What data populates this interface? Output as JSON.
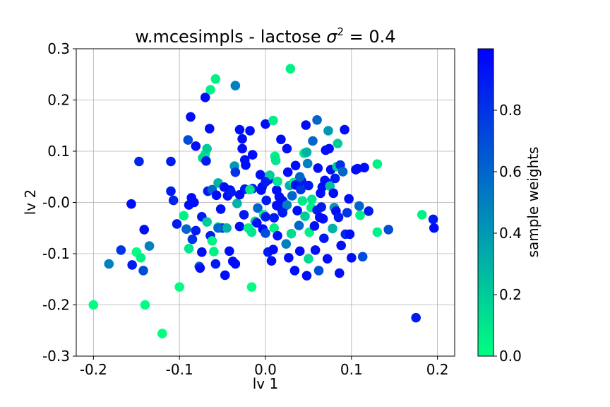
{
  "chart_data": {
    "type": "scatter",
    "title_text": "w.mcesimpls - lactose σ² = 0.4",
    "title_prefix": "w.mcesimpls - lactose ",
    "title_sigma": "σ",
    "title_exp": "2",
    "title_suffix": " = 0.4",
    "xlabel": "lv 1",
    "ylabel": "lv 2",
    "colorbar_label": "sample weights",
    "xlim": [
      -0.22,
      0.22
    ],
    "ylim": [
      -0.3,
      0.3
    ],
    "xticks": [
      -0.2,
      -0.1,
      0.0,
      0.1,
      0.2
    ],
    "xtick_labels": [
      "-0.2",
      "-0.1",
      "0.0",
      "0.1",
      "0.2"
    ],
    "yticks": [
      0.3,
      0.2,
      0.1,
      0.0,
      -0.1,
      -0.2,
      -0.3
    ],
    "ytick_labels": [
      "0.3",
      "0.2",
      "0.1",
      "-0.0",
      "-0.1",
      "-0.2",
      "-0.3"
    ],
    "colorbar_ticks": [
      0.0,
      0.2,
      0.4,
      0.6,
      0.8
    ],
    "colorbar_tick_labels": [
      "0.0",
      "0.2",
      "0.4",
      "0.6",
      "0.8"
    ],
    "colorbar_range": [
      0.0,
      1.0
    ],
    "colormap": [
      "#00ff80",
      "#0000ff"
    ],
    "grid": true,
    "points": [
      [
        -0.2,
        -0.2,
        0.0
      ],
      [
        -0.14,
        -0.2,
        0.0
      ],
      [
        -0.12,
        -0.256,
        0.0
      ],
      [
        -0.15,
        -0.097,
        0.0
      ],
      [
        -0.145,
        -0.108,
        0.05
      ],
      [
        -0.182,
        -0.12,
        0.5
      ],
      [
        -0.168,
        -0.093,
        0.8
      ],
      [
        -0.155,
        -0.122,
        0.9
      ],
      [
        -0.142,
        -0.133,
        0.7
      ],
      [
        -0.135,
        -0.085,
        0.5
      ],
      [
        -0.147,
        0.08,
        0.85
      ],
      [
        -0.141,
        -0.053,
        0.95
      ],
      [
        -0.156,
        -0.003,
        0.95
      ],
      [
        -0.1,
        -0.165,
        0.0
      ],
      [
        -0.11,
        0.08,
        0.9
      ],
      [
        -0.11,
        0.022,
        0.9
      ],
      [
        -0.107,
        0.004,
        0.85
      ],
      [
        -0.103,
        -0.042,
        0.9
      ],
      [
        -0.095,
        -0.026,
        0.05
      ],
      [
        -0.09,
        0.122,
        0.7
      ],
      [
        -0.087,
        0.167,
        0.95
      ],
      [
        -0.081,
        0.11,
        0.95
      ],
      [
        -0.092,
        -0.052,
        0.6
      ],
      [
        -0.089,
        -0.09,
        0.1
      ],
      [
        -0.085,
        -0.072,
        0.8
      ],
      [
        -0.081,
        -0.055,
        0.9
      ],
      [
        -0.077,
        -0.125,
        0.6
      ],
      [
        -0.076,
        -0.128,
        0.95
      ],
      [
        -0.074,
        -0.097,
        0.95
      ],
      [
        -0.083,
        0.0,
        0.95
      ],
      [
        -0.086,
        0.009,
        0.95
      ],
      [
        -0.089,
        -0.005,
        0.95
      ],
      [
        -0.07,
        0.205,
        0.95
      ],
      [
        -0.064,
        0.22,
        0.05
      ],
      [
        -0.058,
        0.241,
        0.05
      ],
      [
        -0.065,
        0.144,
        0.95
      ],
      [
        -0.07,
        0.094,
        0.1
      ],
      [
        -0.068,
        0.105,
        0.2
      ],
      [
        -0.073,
        0.087,
        0.15
      ],
      [
        -0.069,
        0.081,
        0.9
      ],
      [
        -0.074,
        -0.028,
        0.9
      ],
      [
        -0.068,
        -0.038,
        0.2
      ],
      [
        -0.064,
        -0.065,
        0.9
      ],
      [
        -0.067,
        0.022,
        0.9
      ],
      [
        -0.062,
        -0.075,
        0.05
      ],
      [
        -0.06,
        -0.096,
        0.05
      ],
      [
        -0.058,
        -0.12,
        0.9
      ],
      [
        -0.062,
        0.025,
        0.6
      ],
      [
        -0.057,
        0.014,
        0.95
      ],
      [
        -0.055,
        -0.048,
        0.05
      ],
      [
        -0.052,
        -0.013,
        0.95
      ],
      [
        -0.055,
        0.038,
        0.3
      ],
      [
        -0.05,
        -0.05,
        0.8
      ],
      [
        -0.048,
        0.03,
        0.95
      ],
      [
        -0.047,
        -0.142,
        0.95
      ],
      [
        -0.044,
        0.013,
        0.95
      ],
      [
        -0.042,
        -0.095,
        0.95
      ],
      [
        -0.041,
        0.024,
        0.95
      ],
      [
        -0.038,
        -0.115,
        0.95
      ],
      [
        -0.035,
        -0.12,
        0.95
      ],
      [
        -0.036,
        0.071,
        0.4
      ],
      [
        -0.035,
        0.228,
        0.5
      ],
      [
        -0.035,
        0.059,
        0.8
      ],
      [
        -0.033,
        -0.002,
        0.3
      ],
      [
        -0.03,
        -0.047,
        0.95
      ],
      [
        -0.03,
        0.142,
        0.95
      ],
      [
        -0.027,
        0.124,
        0.95
      ],
      [
        -0.027,
        0.105,
        0.95
      ],
      [
        -0.024,
        0.083,
        0.95
      ],
      [
        -0.023,
        0.073,
        0.95
      ],
      [
        -0.025,
        -0.024,
        0.9
      ],
      [
        -0.024,
        0.026,
        0.9
      ],
      [
        -0.02,
        -0.05,
        0.05
      ],
      [
        -0.018,
        0.14,
        0.95
      ],
      [
        -0.016,
        -0.165,
        0.0
      ],
      [
        -0.015,
        0.093,
        0.95
      ],
      [
        -0.015,
        0.027,
        0.9
      ],
      [
        -0.016,
        -0.058,
        0.1
      ],
      [
        -0.012,
        -0.037,
        0.2
      ],
      [
        -0.01,
        -0.04,
        0.95
      ],
      [
        -0.009,
        -0.011,
        0.6
      ],
      [
        -0.006,
        0.054,
        0.95
      ],
      [
        -0.005,
        0.024,
        0.95
      ],
      [
        -0.004,
        0.03,
        0.95
      ],
      [
        -0.003,
        -0.052,
        0.95
      ],
      [
        -0.002,
        -0.024,
        0.05
      ],
      [
        -0.0,
        0.153,
        0.95
      ],
      [
        0.0,
        -0.06,
        0.7
      ],
      [
        0.001,
        0.004,
        0.9
      ],
      [
        0.003,
        -0.097,
        0.9
      ],
      [
        0.004,
        0.045,
        0.95
      ],
      [
        0.005,
        0.053,
        0.2
      ],
      [
        0.007,
        -0.114,
        0.95
      ],
      [
        0.009,
        0.16,
        0.05
      ],
      [
        0.009,
        -0.092,
        0.95
      ],
      [
        0.01,
        -0.05,
        0.05
      ],
      [
        0.011,
        0.09,
        0.05
      ],
      [
        0.012,
        0.082,
        0.1
      ],
      [
        0.013,
        -0.006,
        0.95
      ],
      [
        0.013,
        0.024,
        0.95
      ],
      [
        0.014,
        -0.065,
        0.95
      ],
      [
        0.014,
        0.041,
        0.1
      ],
      [
        0.016,
        0.011,
        0.95
      ],
      [
        0.018,
        0.123,
        0.95
      ],
      [
        0.019,
        -0.014,
        0.95
      ],
      [
        0.02,
        0.003,
        0.95
      ],
      [
        0.022,
        -0.008,
        0.95
      ],
      [
        0.024,
        -0.081,
        0.5
      ],
      [
        0.025,
        0.105,
        0.95
      ],
      [
        0.025,
        -0.005,
        0.5
      ],
      [
        0.026,
        0.059,
        0.95
      ],
      [
        0.027,
        -0.108,
        0.95
      ],
      [
        0.028,
        0.033,
        0.3
      ],
      [
        0.029,
        0.261,
        0.05
      ],
      [
        0.03,
        -0.061,
        0.15
      ],
      [
        0.031,
        0.013,
        0.6
      ],
      [
        0.033,
        0.039,
        0.05
      ],
      [
        0.034,
        -0.133,
        0.95
      ],
      [
        0.035,
        0.034,
        0.95
      ],
      [
        0.035,
        0.072,
        0.95
      ],
      [
        0.037,
        -0.016,
        0.95
      ],
      [
        0.039,
        -0.045,
        0.6
      ],
      [
        0.04,
        -0.095,
        0.95
      ],
      [
        0.041,
        0.025,
        0.8
      ],
      [
        0.042,
        0.042,
        0.9
      ],
      [
        0.043,
        0.003,
        0.1
      ],
      [
        0.045,
        0.096,
        0.1
      ],
      [
        0.046,
        -0.027,
        0.2
      ],
      [
        0.047,
        0.151,
        0.95
      ],
      [
        0.048,
        -0.143,
        0.95
      ],
      [
        0.048,
        0.098,
        0.3
      ],
      [
        0.049,
        0.076,
        0.5
      ],
      [
        0.05,
        -0.11,
        0.15
      ],
      [
        0.05,
        0.033,
        0.9
      ],
      [
        0.051,
        -0.058,
        0.05
      ],
      [
        0.053,
        -0.01,
        0.05
      ],
      [
        0.054,
        0.006,
        0.1
      ],
      [
        0.055,
        0.12,
        0.6
      ],
      [
        0.057,
        -0.046,
        0.95
      ],
      [
        0.058,
        -0.093,
        0.95
      ],
      [
        0.06,
        0.161,
        0.6
      ],
      [
        0.061,
        0.067,
        0.95
      ],
      [
        0.062,
        -0.133,
        0.7
      ],
      [
        0.063,
        -0.029,
        0.95
      ],
      [
        0.064,
        0.018,
        0.95
      ],
      [
        0.065,
        -0.009,
        0.9
      ],
      [
        0.066,
        0.03,
        0.95
      ],
      [
        0.067,
        -0.032,
        0.95
      ],
      [
        0.068,
        -0.07,
        0.9
      ],
      [
        0.069,
        0.043,
        0.95
      ],
      [
        0.07,
        0.102,
        0.95
      ],
      [
        0.071,
        0.039,
        0.95
      ],
      [
        0.072,
        -0.11,
        0.95
      ],
      [
        0.073,
        0.14,
        0.4
      ],
      [
        0.074,
        0.105,
        0.95
      ],
      [
        0.075,
        0.032,
        0.25
      ],
      [
        0.076,
        0.064,
        0.95
      ],
      [
        0.078,
        -0.051,
        0.3
      ],
      [
        0.079,
        0.018,
        0.95
      ],
      [
        0.08,
        -0.01,
        0.4
      ],
      [
        0.081,
        0.047,
        0.9
      ],
      [
        0.082,
        -0.017,
        0.95
      ],
      [
        0.083,
        0.07,
        0.2
      ],
      [
        0.084,
        0.115,
        0.2
      ],
      [
        0.085,
        -0.029,
        0.9
      ],
      [
        0.086,
        -0.138,
        0.95
      ],
      [
        0.087,
        0.073,
        0.8
      ],
      [
        0.088,
        -0.084,
        0.95
      ],
      [
        0.09,
        0.06,
        0.6
      ],
      [
        0.092,
        0.142,
        0.95
      ],
      [
        0.093,
        -0.062,
        0.85
      ],
      [
        0.095,
        -0.02,
        0.8
      ],
      [
        0.097,
        0.007,
        0.95
      ],
      [
        0.098,
        -0.062,
        0.95
      ],
      [
        0.1,
        -0.108,
        0.95
      ],
      [
        0.105,
        0.064,
        0.95
      ],
      [
        0.107,
        0.066,
        0.95
      ],
      [
        0.109,
        -0.007,
        0.6
      ],
      [
        0.11,
        -0.025,
        0.05
      ],
      [
        0.113,
        -0.106,
        0.7
      ],
      [
        0.115,
        0.068,
        0.95
      ],
      [
        0.12,
        -0.017,
        0.9
      ],
      [
        0.13,
        0.075,
        0.05
      ],
      [
        0.13,
        -0.058,
        0.05
      ],
      [
        0.143,
        -0.053,
        0.7
      ],
      [
        0.175,
        -0.225,
        0.9
      ],
      [
        0.182,
        -0.024,
        0.05
      ],
      [
        0.195,
        -0.033,
        0.9
      ],
      [
        0.196,
        -0.05,
        0.95
      ],
      [
        -0.04,
        0.02,
        0.9
      ],
      [
        -0.03,
        0.015,
        0.95
      ],
      [
        0.0,
        0.04,
        0.9
      ],
      [
        0.01,
        -0.03,
        0.9
      ],
      [
        -0.045,
        -0.05,
        0.3
      ],
      [
        -0.055,
        -0.05,
        0.6
      ],
      [
        -0.018,
        0.025,
        0.1
      ],
      [
        0.0,
        -0.028,
        0.9
      ],
      [
        0.02,
        -0.02,
        0.9
      ],
      [
        0.04,
        0.05,
        0.6
      ],
      [
        0.06,
        -0.015,
        0.9
      ]
    ]
  }
}
